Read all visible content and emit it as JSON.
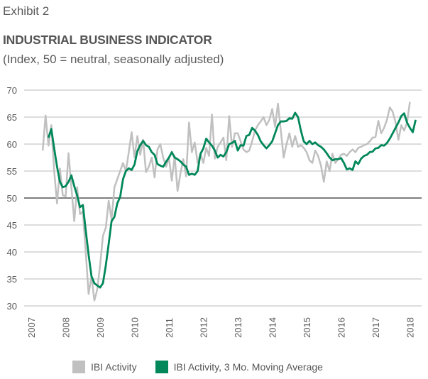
{
  "header": {
    "exhibit": "Exhibit 2",
    "title": "INDUSTRIAL BUSINESS INDICATOR",
    "subtitle": "(Index, 50 = neutral, seasonally adjusted)"
  },
  "chart_data": {
    "type": "line",
    "title": "INDUSTRIAL BUSINESS INDICATOR",
    "subtitle": "(Index, 50 = neutral, seasonally adjusted)",
    "xlabel": "",
    "ylabel": "",
    "ylim": [
      30,
      70
    ],
    "yticks": [
      30,
      35,
      40,
      45,
      50,
      55,
      60,
      65,
      70
    ],
    "xticks": [
      "2007",
      "2008",
      "2009",
      "2010",
      "2011",
      "2012",
      "2013",
      "2014",
      "2015",
      "2016",
      "2017",
      "2018"
    ],
    "x_start": "2007-01",
    "grid": true,
    "reference_line": 50,
    "legend_position": "bottom",
    "colors": {
      "activity": "#c0c0c0",
      "moving_average": "#00875a",
      "grid": "#dddddd",
      "reference": "#555555"
    },
    "series": [
      {
        "name": "IBI Activity",
        "start_month_index": 4,
        "values": [
          58.8,
          65.3,
          59.7,
          63.5,
          55.0,
          49.0,
          55.5,
          50.5,
          50.3,
          58.3,
          52.0,
          45.7,
          52.0,
          47.0,
          47.5,
          40.0,
          32.2,
          35.5,
          31.0,
          33.0,
          37.5,
          43.0,
          44.5,
          49.5,
          46.0,
          52.0,
          53.5,
          55.0,
          56.5,
          55.0,
          58.5,
          62.2,
          57.5,
          61.5,
          58.0,
          60.8,
          54.8,
          55.8,
          57.5,
          53.8,
          59.0,
          60.0,
          57.5,
          55.8,
          57.5,
          53.2,
          57.8,
          51.3,
          54.5,
          57.2,
          54.0,
          64.0,
          58.5,
          60.3,
          56.5,
          58.2,
          56.5,
          59.3,
          57.8,
          65.5,
          57.3,
          59.5,
          60.3,
          61.2,
          57.0,
          65.2,
          59.5,
          62.0,
          62.0,
          60.5,
          59.0,
          58.5,
          58.8,
          60.5,
          62.5,
          63.5,
          64.2,
          65.0,
          63.5,
          64.5,
          66.5,
          63.2,
          67.5,
          62.5,
          57.5,
          60.0,
          62.0,
          59.5,
          61.5,
          59.5,
          59.8,
          59.3,
          58.5,
          57.0,
          56.5,
          58.8,
          57.8,
          56.0,
          53.0,
          56.8,
          55.0,
          58.2,
          56.5,
          57.2,
          58.0,
          58.2,
          57.8,
          58.5,
          59.0,
          58.5,
          59.3,
          59.5,
          59.8,
          60.0,
          60.5,
          61.2,
          61.3,
          64.3,
          62.0,
          63.0,
          64.5,
          66.8,
          66.0,
          64.0,
          60.8,
          63.5,
          62.5,
          64.0,
          67.8
        ]
      },
      {
        "name": "IBI Activity, 3 Mo. Moving Average",
        "start_month_index": 6,
        "values": [
          61.2,
          62.8,
          59.2,
          55.8,
          53.0,
          52.0,
          52.2,
          53.0,
          54.2,
          52.2,
          50.5,
          48.3,
          48.7,
          44.0,
          39.5,
          35.5,
          34.2,
          33.8,
          33.4,
          34.2,
          37.5,
          41.5,
          45.7,
          46.5,
          49.0,
          50.2,
          53.5,
          55.0,
          55.5,
          55.2,
          56.2,
          58.7,
          59.8,
          60.6,
          59.8,
          59.5,
          58.5,
          58.0,
          56.3,
          56.0,
          55.8,
          56.7,
          57.5,
          58.5,
          57.5,
          57.2,
          56.8,
          56.2,
          55.8,
          54.3,
          54.5,
          54.3,
          55.0,
          58.2,
          59.2,
          61.0,
          60.3,
          59.7,
          58.8,
          57.5,
          58.0,
          57.7,
          58.5,
          60.0,
          60.2,
          60.6,
          58.8,
          59.8,
          59.7,
          61.5,
          61.7,
          63.0,
          62.5,
          61.7,
          60.5,
          59.8,
          59.2,
          59.8,
          60.5,
          62.0,
          63.5,
          64.2,
          64.2,
          64.3,
          64.8,
          64.7,
          65.8,
          65.0,
          62.5,
          60.5,
          60.0,
          60.6,
          60.0,
          60.3,
          59.8,
          59.5,
          59.0,
          58.3,
          57.5,
          57.0,
          57.2,
          57.2,
          57.4,
          56.5,
          55.3,
          55.5,
          55.2,
          56.8,
          56.3,
          57.3,
          57.8,
          58.0,
          58.5,
          58.6,
          59.2,
          59.3,
          59.8,
          59.7,
          60.2,
          61.0,
          62.0,
          63.0,
          64.0,
          65.2,
          65.7,
          64.0,
          63.0,
          62.2,
          64.5
        ]
      }
    ]
  },
  "legend": {
    "items": [
      {
        "label": "IBI Activity",
        "color": "#c0c0c0"
      },
      {
        "label": "IBI Activity, 3 Mo. Moving Average",
        "color": "#00875a"
      }
    ]
  }
}
